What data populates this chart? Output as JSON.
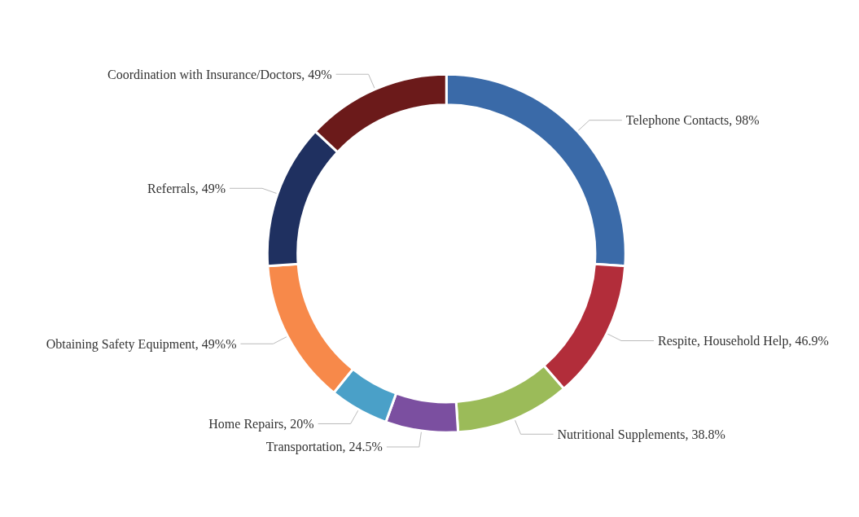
{
  "chart_data": {
    "type": "donut",
    "categories": [
      "Telephone Contacts",
      "Respite, Household Help",
      "Nutritional Supplements",
      "Transportation",
      "Home Repairs",
      "Obtaining Safety Equipment",
      "Referrals",
      "Coordination with Insurance/Doctors"
    ],
    "values": [
      98,
      46.9,
      38.8,
      24.5,
      20,
      49,
      49,
      49
    ],
    "value_labels": [
      "98%",
      "46.9%",
      "38.8%",
      "24.5%",
      "20%",
      "49%%",
      "49%",
      "49%"
    ],
    "colors": [
      "#3a6aa8",
      "#b22d3a",
      "#9bbb59",
      "#7b4fa0",
      "#4aa0c8",
      "#f7894a",
      "#1f3060",
      "#6b1a1a"
    ],
    "legend": false
  }
}
